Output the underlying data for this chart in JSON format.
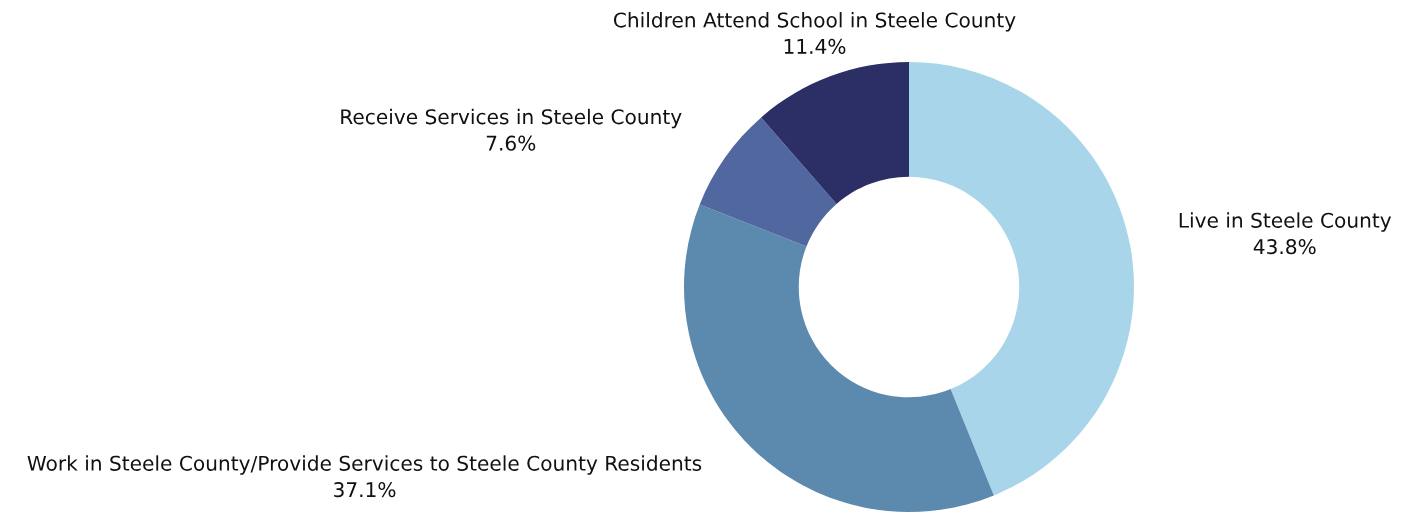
{
  "chart_data": {
    "type": "donut",
    "categories": [
      "Live in Steele County",
      "Work in Steele County/Provide Services to Steele County Residents",
      "Receive Services in Steele County",
      "Children Attend School in Steele County"
    ],
    "values": [
      43.8,
      37.1,
      7.6,
      11.4
    ],
    "colors": [
      "#a8d5ea",
      "#5b8aae",
      "#5067a0",
      "#2b2f66"
    ],
    "value_labels": [
      "43.8%",
      "37.1%",
      "7.6%",
      "11.4%"
    ],
    "legend": false
  }
}
